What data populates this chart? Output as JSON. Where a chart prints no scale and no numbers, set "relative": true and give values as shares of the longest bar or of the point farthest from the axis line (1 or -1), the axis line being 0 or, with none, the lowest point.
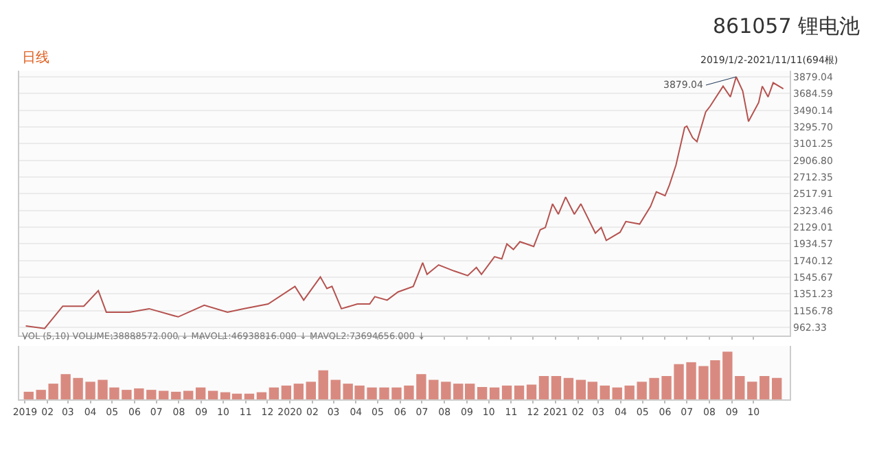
{
  "chart_data": [
    {
      "type": "line",
      "title": "861057 锂电池",
      "subtitle": "2019/1/2-2021/11/11(694根)",
      "annotations": [
        "日线",
        {
          "text": "3879.04",
          "x": "2021-09-07",
          "y": 3879.04
        }
      ],
      "x": [
        "2019-01-02",
        "2019-01-28",
        "2019-02-22",
        "2019-03-23",
        "2019-04-12",
        "2019-04-23",
        "2019-05-25",
        "2019-06-21",
        "2019-07-31",
        "2019-09-05",
        "2019-10-07",
        "2019-10-29",
        "2019-12-02",
        "2020-01-08",
        "2020-01-20",
        "2020-02-12",
        "2020-02-21",
        "2020-02-28",
        "2020-03-12",
        "2020-04-03",
        "2020-04-20",
        "2020-04-27",
        "2020-05-14",
        "2020-05-29",
        "2020-06-19",
        "2020-07-02",
        "2020-07-08",
        "2020-07-24",
        "2020-08-14",
        "2020-09-02",
        "2020-09-14",
        "2020-09-21",
        "2020-10-09",
        "2020-10-19",
        "2020-10-26",
        "2020-11-04",
        "2020-11-13",
        "2020-12-02",
        "2020-12-11",
        "2020-12-18",
        "2020-12-28",
        "2021-01-05",
        "2021-01-15",
        "2021-01-27",
        "2021-02-05",
        "2021-02-25",
        "2021-03-05",
        "2021-03-12",
        "2021-03-31",
        "2021-04-08",
        "2021-04-27",
        "2021-05-12",
        "2021-05-20",
        "2021-06-01",
        "2021-06-07",
        "2021-06-16",
        "2021-06-28",
        "2021-07-01",
        "2021-07-09",
        "2021-07-15",
        "2021-07-27",
        "2021-08-02",
        "2021-08-20",
        "2021-08-30",
        "2021-09-07",
        "2021-09-16",
        "2021-09-24",
        "2021-10-08",
        "2021-10-13",
        "2021-10-21",
        "2021-10-28",
        "2021-11-11"
      ],
      "series": [
        {
          "color": "#b5524f",
          "values": [
            980,
            950,
            1210,
            1210,
            1390,
            1140,
            1140,
            1180,
            1085,
            1220,
            1140,
            1180,
            1235,
            1440,
            1280,
            1550,
            1415,
            1440,
            1180,
            1235,
            1235,
            1320,
            1280,
            1375,
            1440,
            1715,
            1580,
            1690,
            1620,
            1565,
            1660,
            1580,
            1785,
            1760,
            1935,
            1870,
            1960,
            1905,
            2100,
            2125,
            2400,
            2280,
            2480,
            2280,
            2400,
            2060,
            2125,
            1975,
            2070,
            2195,
            2165,
            2370,
            2540,
            2495,
            2620,
            2850,
            3290,
            3305,
            3170,
            3125,
            3470,
            3535,
            3770,
            3645,
            3879.04,
            3715,
            3360,
            3580,
            3770,
            3645,
            3810,
            3740
          ]
        }
      ],
      "xlim": [
        "2018-12-24",
        "2021-11-20"
      ],
      "xticks": [
        {
          "value": "2019-01-01",
          "label": null
        },
        {
          "value": "2019-02-01",
          "label": null
        },
        {
          "value": "2019-03-01",
          "label": null
        },
        {
          "value": "2019-04-01",
          "label": null
        },
        {
          "value": "2019-05-01",
          "label": null
        },
        {
          "value": "2019-06-01",
          "label": null
        },
        {
          "value": "2019-07-01",
          "label": null
        },
        {
          "value": "2019-08-01",
          "label": null
        },
        {
          "value": "2019-09-01",
          "label": null
        },
        {
          "value": "2019-10-01",
          "label": null
        },
        {
          "value": "2019-11-01",
          "label": null
        },
        {
          "value": "2019-12-01",
          "label": null
        },
        {
          "value": "2020-01-01",
          "label": null
        },
        {
          "value": "2020-02-01",
          "label": null
        },
        {
          "value": "2020-03-01",
          "label": null
        },
        {
          "value": "2020-04-01",
          "label": null
        },
        {
          "value": "2020-05-01",
          "label": null
        },
        {
          "value": "2020-06-01",
          "label": null
        },
        {
          "value": "2020-07-01",
          "label": null
        },
        {
          "value": "2020-08-01",
          "label": null
        },
        {
          "value": "2020-09-01",
          "label": null
        },
        {
          "value": "2020-10-01",
          "label": null
        },
        {
          "value": "2020-11-01",
          "label": null
        },
        {
          "value": "2020-12-01",
          "label": null
        },
        {
          "value": "2021-01-01",
          "label": null
        },
        {
          "value": "2021-02-01",
          "label": null
        },
        {
          "value": "2021-03-01",
          "label": null
        },
        {
          "value": "2021-04-01",
          "label": null
        },
        {
          "value": "2021-05-01",
          "label": null
        },
        {
          "value": "2021-06-01",
          "label": null
        },
        {
          "value": "2021-07-01",
          "label": null
        },
        {
          "value": "2021-08-01",
          "label": null
        },
        {
          "value": "2021-09-01",
          "label": null
        },
        {
          "value": "2021-10-01",
          "label": null
        }
      ],
      "ylim": [
        870,
        3950
      ],
      "yticks": [
        962.33,
        1156.78,
        1351.23,
        1545.67,
        1740.12,
        1934.57,
        2129.01,
        2323.46,
        2517.91,
        2712.35,
        {
          "value": 2906.8,
          "label": "2906.80"
        },
        3101.25,
        {
          "value": 3295.7,
          "label": "3295.70"
        },
        3490.14,
        3684.59,
        3879.04
      ],
      "grid": "y",
      "tick_labels": "y"
    },
    {
      "type": "bar",
      "title": "VOL (5,10) VOLUME:38888572.000 ↓ MAVOL1:46938816.000 ↓ MAVOL2:73694656.000 ↓",
      "relative": true,
      "color": "#d98a80",
      "x": [
        "2019-01-06",
        "2019-01-23",
        "2019-02-09",
        "2019-02-26",
        "2019-03-15",
        "2019-04-01",
        "2019-04-18",
        "2019-05-04",
        "2019-05-21",
        "2019-06-07",
        "2019-06-24",
        "2019-07-11",
        "2019-07-28",
        "2019-08-14",
        "2019-08-31",
        "2019-09-17",
        "2019-10-04",
        "2019-10-20",
        "2019-11-06",
        "2019-11-23",
        "2019-12-10",
        "2019-12-27",
        "2020-01-13",
        "2020-01-30",
        "2020-02-16",
        "2020-03-04",
        "2020-03-21",
        "2020-04-06",
        "2020-04-23",
        "2020-05-10",
        "2020-05-27",
        "2020-06-13",
        "2020-06-30",
        "2020-07-17",
        "2020-08-03",
        "2020-08-20",
        "2020-09-05",
        "2020-09-22",
        "2020-10-09",
        "2020-10-26",
        "2020-11-12",
        "2020-11-29",
        "2020-12-16",
        "2021-01-02",
        "2021-01-19",
        "2021-02-05",
        "2021-02-21",
        "2021-03-10",
        "2021-03-27",
        "2021-04-13",
        "2021-04-30",
        "2021-05-17",
        "2021-06-03",
        "2021-06-20",
        "2021-07-07",
        "2021-07-24",
        "2021-08-09",
        "2021-08-26",
        "2021-09-12",
        "2021-09-29",
        "2021-10-16",
        "2021-11-02"
      ],
      "values": [
        0.16,
        0.2,
        0.33,
        0.53,
        0.45,
        0.37,
        0.41,
        0.25,
        0.2,
        0.23,
        0.2,
        0.18,
        0.16,
        0.18,
        0.25,
        0.18,
        0.15,
        0.12,
        0.12,
        0.15,
        0.25,
        0.29,
        0.33,
        0.37,
        0.61,
        0.41,
        0.33,
        0.29,
        0.25,
        0.25,
        0.25,
        0.29,
        0.53,
        0.41,
        0.37,
        0.33,
        0.33,
        0.26,
        0.25,
        0.29,
        0.29,
        0.31,
        0.49,
        0.49,
        0.45,
        0.41,
        0.37,
        0.29,
        0.25,
        0.29,
        0.37,
        0.45,
        0.49,
        0.74,
        0.78,
        0.7,
        0.82,
        1,
        0.49,
        0.37,
        0.49,
        0.45
      ],
      "xlim": [
        "2018-12-24",
        "2021-11-20"
      ],
      "xticks": [
        {
          "value": "2019-01-01",
          "label": "2019"
        },
        {
          "value": "2019-02-01",
          "label": "02"
        },
        {
          "value": "2019-03-01",
          "label": "03"
        },
        {
          "value": "2019-04-01",
          "label": "04"
        },
        {
          "value": "2019-05-01",
          "label": "05"
        },
        {
          "value": "2019-06-01",
          "label": "06"
        },
        {
          "value": "2019-07-01",
          "label": "07"
        },
        {
          "value": "2019-08-01",
          "label": "08"
        },
        {
          "value": "2019-09-01",
          "label": "09"
        },
        {
          "value": "2019-10-01",
          "label": "10"
        },
        {
          "value": "2019-11-01",
          "label": "11"
        },
        {
          "value": "2019-12-01",
          "label": "12"
        },
        {
          "value": "2020-01-01",
          "label": "2020"
        },
        {
          "value": "2020-02-01",
          "label": "02"
        },
        {
          "value": "2020-03-01",
          "label": "03"
        },
        {
          "value": "2020-04-01",
          "label": "04"
        },
        {
          "value": "2020-05-01",
          "label": "05"
        },
        {
          "value": "2020-06-01",
          "label": "06"
        },
        {
          "value": "2020-07-01",
          "label": "07"
        },
        {
          "value": "2020-08-01",
          "label": "08"
        },
        {
          "value": "2020-09-01",
          "label": "09"
        },
        {
          "value": "2020-10-01",
          "label": "10"
        },
        {
          "value": "2020-11-01",
          "label": "11"
        },
        {
          "value": "2020-12-01",
          "label": "12"
        },
        {
          "value": "2021-01-01",
          "label": "2021"
        },
        {
          "value": "2021-02-01",
          "label": "02"
        },
        {
          "value": "2021-03-01",
          "label": "03"
        },
        {
          "value": "2021-04-01",
          "label": "04"
        },
        {
          "value": "2021-05-01",
          "label": "05"
        },
        {
          "value": "2021-06-01",
          "label": "06"
        },
        {
          "value": "2021-07-01",
          "label": "07"
        },
        {
          "value": "2021-08-01",
          "label": "08"
        },
        {
          "value": "2021-09-01",
          "label": "09"
        },
        {
          "value": "2021-10-01",
          "label": "10"
        }
      ],
      "tick_labels": "x"
    }
  ]
}
